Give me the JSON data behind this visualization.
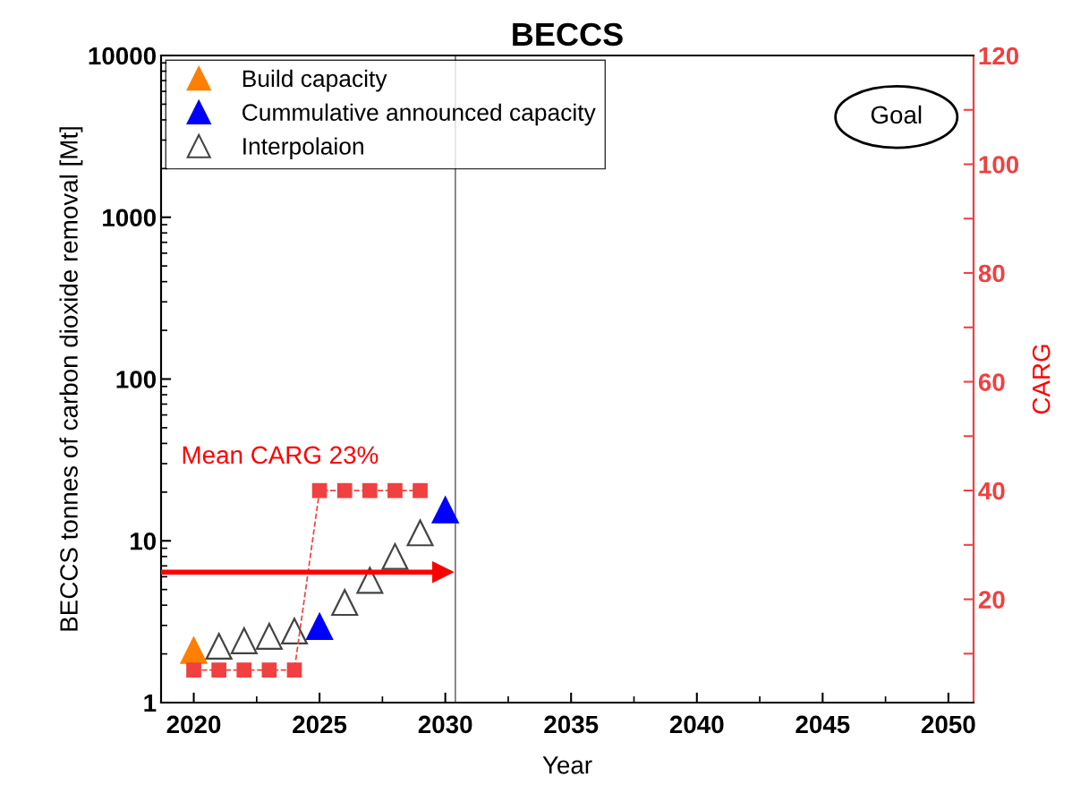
{
  "chart_data": {
    "type": "scatter",
    "title": "BECCS",
    "xlabel": "Year",
    "ylabel": "BECCS tonnes of carbon dioxide removal [Mt]",
    "y2label": "CARG",
    "series": [
      {
        "name": "Build capacity",
        "color": "#ff7f00",
        "marker": "triangle",
        "x": [
          2020
        ],
        "values": [
          2.1
        ]
      },
      {
        "name": "Cummulative announced capacity",
        "color": "#0000ff",
        "marker": "triangle",
        "x": [
          2025,
          2030
        ],
        "values": [
          2.95,
          15.5
        ]
      },
      {
        "name": "Interpolaion",
        "color": "#444444",
        "marker": "triangle",
        "x": [
          2021,
          2022,
          2023,
          2024,
          2026,
          2027,
          2028,
          2029
        ],
        "values": [
          2.23,
          2.41,
          2.57,
          2.77,
          4.16,
          5.7,
          8.0,
          11.2
        ]
      },
      {
        "type": "line",
        "axis": "y2",
        "color": "#f04040",
        "marker": "square",
        "line_style": "dashed",
        "x": [
          2020,
          2021,
          2022,
          2023,
          2024,
          2025,
          2026,
          2027,
          2028,
          2029
        ],
        "values": [
          7,
          7,
          7,
          7,
          7,
          40,
          40,
          40,
          40,
          40
        ]
      }
    ],
    "log": "y",
    "xlim": [
      2018.7,
      2051
    ],
    "xticks": [
      2020,
      2025,
      2030,
      2035,
      2040,
      2045,
      2050
    ],
    "ylim": [
      1,
      10000
    ],
    "yticks": [
      1,
      10,
      100,
      1000,
      10000
    ],
    "y2lim": [
      1,
      120
    ],
    "y2ticks": [
      {
        "value": 10,
        "label": null
      },
      20,
      {
        "value": 30,
        "label": null
      },
      40,
      {
        "value": 50,
        "label": null
      },
      60,
      {
        "value": 70,
        "label": null
      },
      80,
      {
        "value": 90,
        "label": null
      },
      100,
      {
        "value": 110,
        "label": null
      },
      120
    ],
    "ref_lines": [
      {
        "axis": "y2",
        "value": 25,
        "label": "Mean CARG 23%",
        "color": "#ff0000"
      },
      {
        "axis": "x",
        "value": 2030.4,
        "color": "#555555"
      }
    ],
    "annotations": [
      "Goal"
    ],
    "legend": "top left",
    "grid": false
  }
}
